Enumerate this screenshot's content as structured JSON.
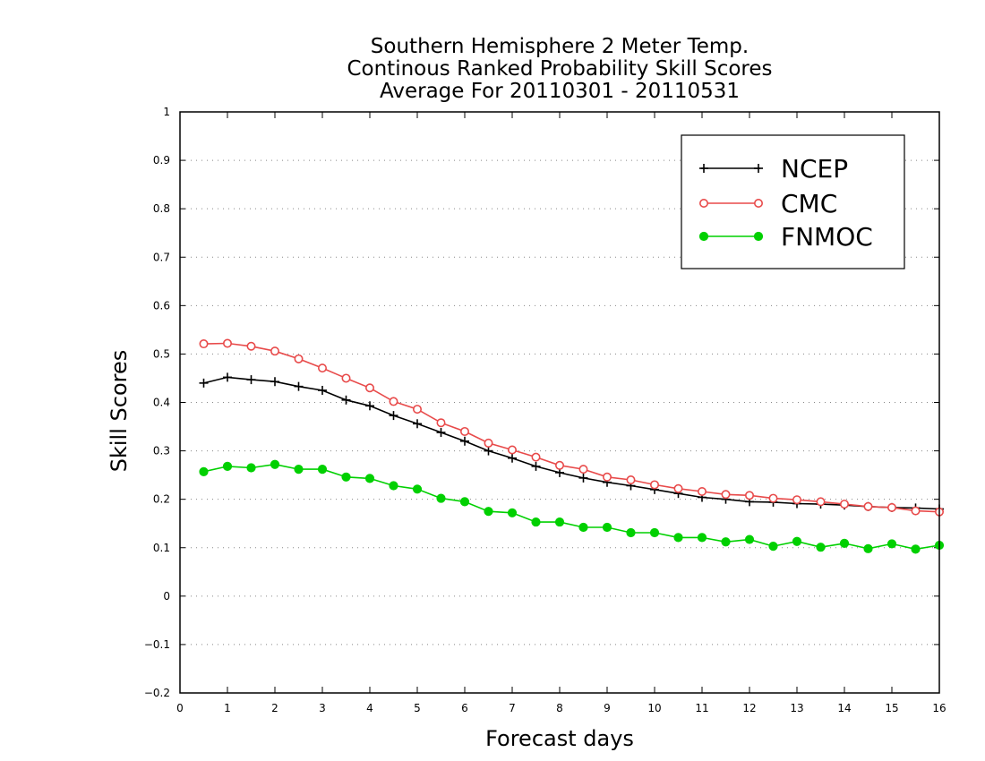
{
  "chart_data": {
    "type": "line",
    "title": [
      "Southern Hemisphere 2 Meter Temp.",
      "Continous Ranked Probability Skill Scores",
      "Average For 20110301 - 20110531"
    ],
    "xlabel": "Forecast days",
    "ylabel": "Skill Scores",
    "xlim": [
      0,
      16
    ],
    "ylim": [
      -0.2,
      1
    ],
    "xticks": [
      "0",
      "1",
      "2",
      "3",
      "4",
      "5",
      "6",
      "7",
      "8",
      "9",
      "10",
      "11",
      "12",
      "13",
      "14",
      "15",
      "16"
    ],
    "yticks": [
      "−0.2",
      "−0.1",
      "0",
      "0.1",
      "0.2",
      "0.3",
      "0.4",
      "0.5",
      "0.6",
      "0.7",
      "0.8",
      "0.9",
      "1"
    ],
    "grid": "horizontal-dotted",
    "legend_position": "top-right",
    "x": [
      0.5,
      1,
      1.5,
      2,
      2.5,
      3,
      3.5,
      4,
      4.5,
      5,
      5.5,
      6,
      6.5,
      7,
      7.5,
      8,
      8.5,
      9,
      9.5,
      10,
      10.5,
      11,
      11.5,
      12,
      12.5,
      13,
      13.5,
      14,
      14.5,
      15,
      15.5,
      16
    ],
    "series": [
      {
        "name": "NCEP",
        "color": "#000000",
        "marker": "plus",
        "values": [
          0.44,
          0.452,
          0.447,
          0.443,
          0.433,
          0.425,
          0.405,
          0.393,
          0.373,
          0.356,
          0.338,
          0.32,
          0.3,
          0.285,
          0.268,
          0.255,
          0.244,
          0.235,
          0.228,
          0.22,
          0.212,
          0.204,
          0.2,
          0.195,
          0.194,
          0.191,
          0.19,
          0.188,
          0.185,
          0.183,
          0.182,
          0.18
        ]
      },
      {
        "name": "CMC",
        "color": "#e84a4a",
        "marker": "open-circle",
        "values": [
          0.521,
          0.522,
          0.516,
          0.506,
          0.49,
          0.471,
          0.45,
          0.43,
          0.402,
          0.386,
          0.358,
          0.34,
          0.316,
          0.302,
          0.287,
          0.27,
          0.262,
          0.246,
          0.24,
          0.23,
          0.222,
          0.216,
          0.21,
          0.208,
          0.202,
          0.199,
          0.195,
          0.19,
          0.185,
          0.183,
          0.176,
          0.174
        ]
      },
      {
        "name": "FNMOC",
        "color": "#00d000",
        "marker": "filled-circle",
        "values": [
          0.257,
          0.268,
          0.265,
          0.272,
          0.262,
          0.262,
          0.246,
          0.243,
          0.228,
          0.221,
          0.202,
          0.195,
          0.175,
          0.172,
          0.153,
          0.153,
          0.142,
          0.142,
          0.131,
          0.131,
          0.121,
          0.121,
          0.112,
          0.117,
          0.103,
          0.113,
          0.101,
          0.109,
          0.098,
          0.108,
          0.097,
          0.105
        ]
      }
    ]
  }
}
